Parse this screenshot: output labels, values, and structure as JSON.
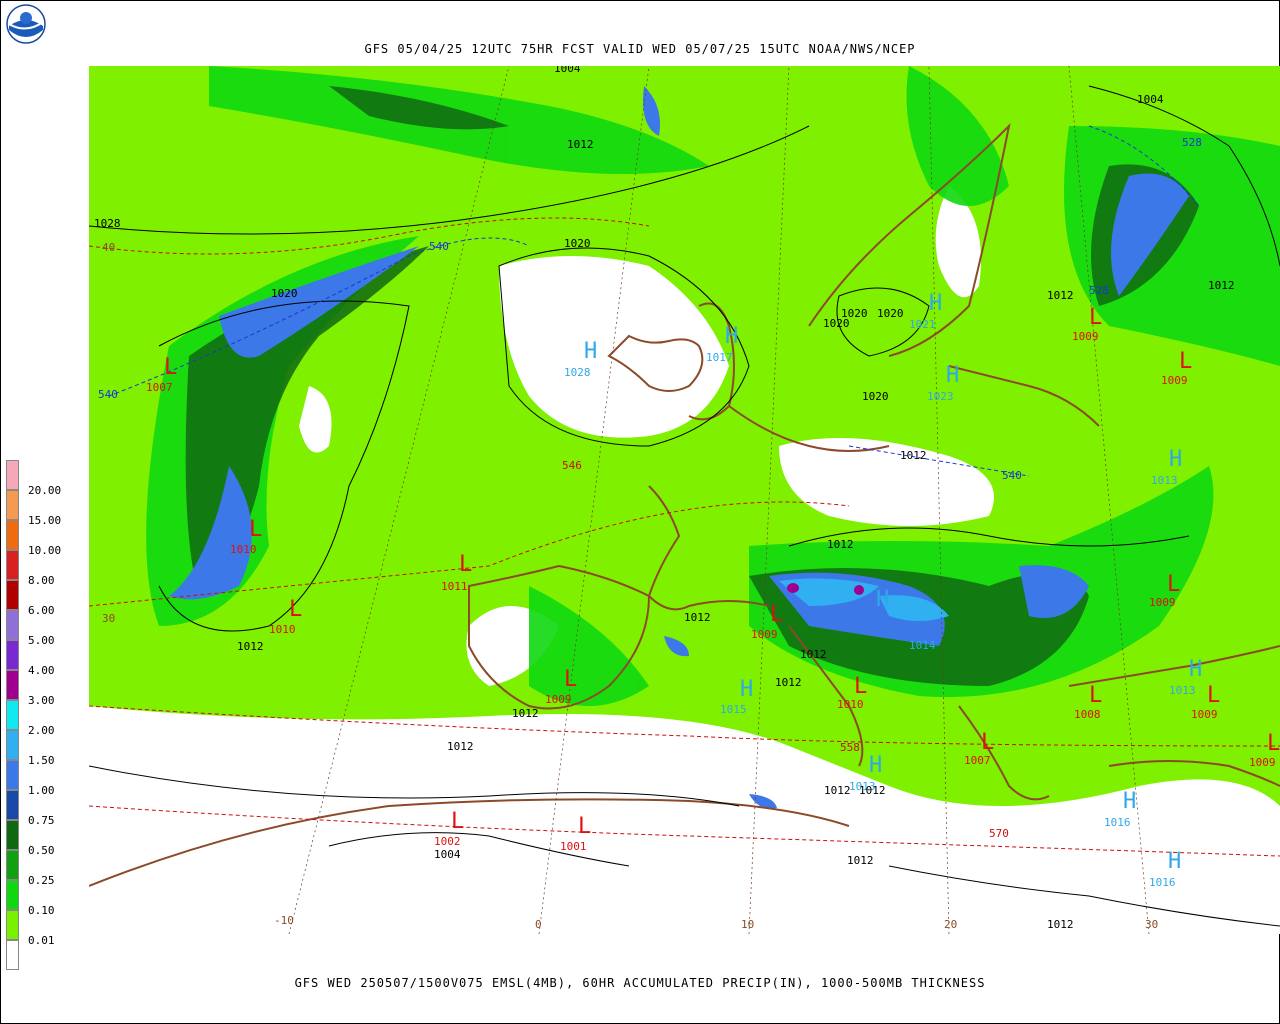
{
  "header": {
    "title": "GFS 05/04/25 12UTC 75HR FCST VALID WED 05/07/25 15UTC NOAA/NWS/NCEP"
  },
  "footer": {
    "caption": "GFS WED 250507/1500V075 EMSL(4MB), 60HR ACCUMULATED PRECIP(IN), 1000-500MB THICKNESS"
  },
  "logo": {
    "icon": "noaa-logo-icon"
  },
  "legend": {
    "items": [
      {
        "label": "20.00",
        "color": "#f5a8b8"
      },
      {
        "label": "15.00",
        "color": "#f59a50"
      },
      {
        "label": "10.00",
        "color": "#f06a10"
      },
      {
        "label": "8.00",
        "color": "#d82020"
      },
      {
        "label": "6.00",
        "color": "#b00000"
      },
      {
        "label": "5.00",
        "color": "#9070d8"
      },
      {
        "label": "4.00",
        "color": "#7a28d0"
      },
      {
        "label": "3.00",
        "color": "#a00090"
      },
      {
        "label": "2.00",
        "color": "#10e8f0"
      },
      {
        "label": "1.50",
        "color": "#30b0f0"
      },
      {
        "label": "1.00",
        "color": "#3c78e8"
      },
      {
        "label": "0.75",
        "color": "#1848a8"
      },
      {
        "label": "0.50",
        "color": "#106810"
      },
      {
        "label": "0.25",
        "color": "#10a010"
      },
      {
        "label": "0.10",
        "color": "#10d810"
      },
      {
        "label": "0.01",
        "color": "#78f000"
      },
      {
        "label": "",
        "color": "#ffffff"
      }
    ]
  },
  "colors": {
    "land_border": "#8b4a2a",
    "isobar": "#000000",
    "thick_warm": "#c81010",
    "thick_cold": "#1838d0",
    "high": "#30a8e8",
    "low": "#e01010"
  },
  "centers": [
    {
      "letter": "H",
      "value": "1028"
    },
    {
      "letter": "H",
      "value": "1017"
    },
    {
      "letter": "H",
      "value": "1021"
    },
    {
      "letter": "H",
      "value": "1023"
    },
    {
      "letter": "H",
      "value": "1015"
    },
    {
      "letter": "H",
      "value": "1014"
    },
    {
      "letter": "H",
      "value": "1013"
    },
    {
      "letter": "H",
      "value": "1013"
    },
    {
      "letter": "H",
      "value": "1016"
    },
    {
      "letter": "H",
      "value": "1016"
    },
    {
      "letter": "H",
      "value": "1013"
    },
    {
      "letter": "L",
      "value": "1007"
    },
    {
      "letter": "L",
      "value": "1010"
    },
    {
      "letter": "L",
      "value": "1010"
    },
    {
      "letter": "L",
      "value": "1011"
    },
    {
      "letter": "L",
      "value": "1009"
    },
    {
      "letter": "L",
      "value": "1009"
    },
    {
      "letter": "L",
      "value": "1010"
    },
    {
      "letter": "L",
      "value": "1002"
    },
    {
      "letter": "L",
      "value": "1001"
    },
    {
      "letter": "L",
      "value": "1007"
    },
    {
      "letter": "L",
      "value": "1008"
    },
    {
      "letter": "L",
      "value": "1009"
    },
    {
      "letter": "L",
      "value": "1009"
    },
    {
      "letter": "L",
      "value": "1009"
    },
    {
      "letter": "L",
      "value": "1009"
    },
    {
      "letter": "L",
      "value": "1009"
    }
  ],
  "isobar_labels": [
    "1004",
    "1012",
    "1028",
    "1020",
    "1020",
    "1020",
    "1020",
    "1020",
    "1020",
    "1012",
    "1012",
    "1012",
    "1012",
    "1012",
    "1012",
    "1012",
    "1012",
    "1012",
    "1012",
    "1012",
    "1012",
    "1012",
    "1004",
    "1004",
    "1012"
  ],
  "thickness_labels": [
    "540",
    "540",
    "546",
    "540",
    "528",
    "528",
    "558",
    "570",
    "40",
    "30"
  ],
  "longitude_labels": [
    "-10",
    "0",
    "10",
    "20",
    "30"
  ]
}
